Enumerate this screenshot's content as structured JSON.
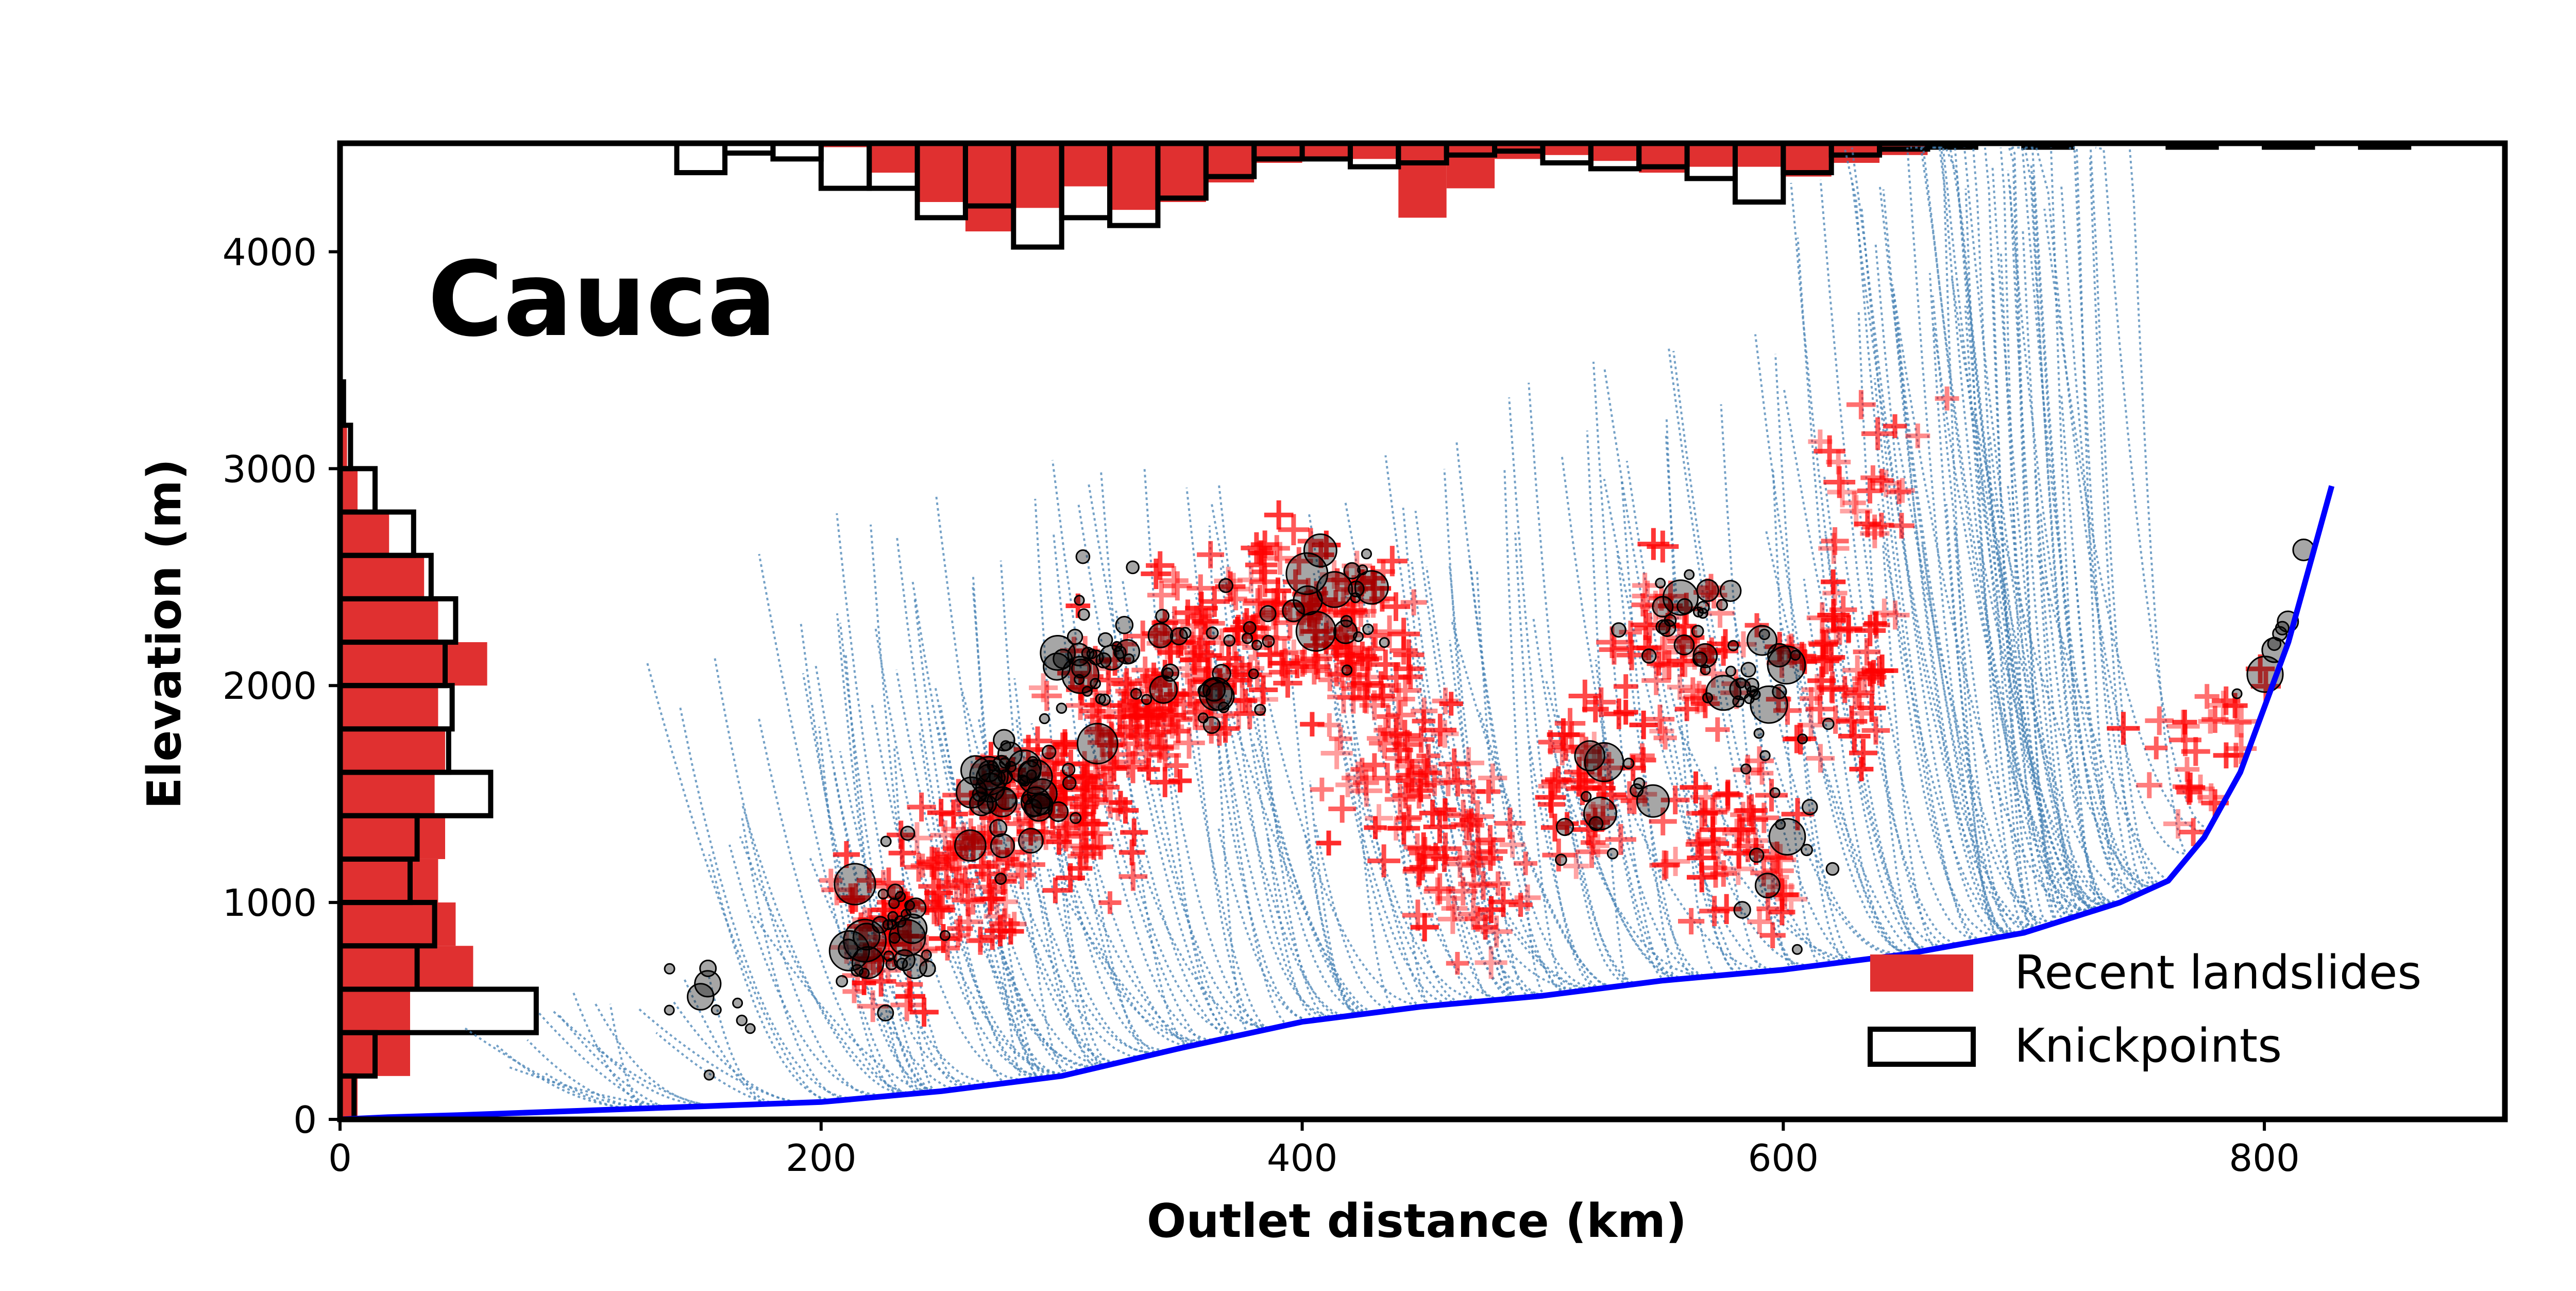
{
  "chart_data": {
    "type": "scatter",
    "title": "Cauca",
    "xlabel": "Outlet distance (km)",
    "ylabel": "Elevation (m)",
    "xlim": [
      0,
      900
    ],
    "ylim": [
      0,
      4500
    ],
    "x_ticks": [
      0,
      200,
      400,
      600,
      800
    ],
    "y_ticks": [
      0,
      1000,
      2000,
      3000,
      4000
    ],
    "grid": false,
    "legend": {
      "placement": "bottom-right",
      "entries": [
        {
          "label": "Recent landslides",
          "style": "filled",
          "color": "#e03030"
        },
        {
          "label": "Knickpoints",
          "style": "outline",
          "color": "#000000"
        }
      ]
    },
    "colors": {
      "tributaries": "#4682b4",
      "main_stem": "#0000ff",
      "landslides": "#ff0000",
      "knickpoints": "#000000",
      "hist_fill": "#e03030"
    },
    "series": [
      {
        "kind": "main_stem_profile",
        "x": [
          0,
          20,
          50,
          100,
          150,
          200,
          250,
          300,
          350,
          400,
          450,
          500,
          550,
          600,
          650,
          700,
          740,
          760,
          775,
          790,
          800,
          810,
          820,
          828
        ],
        "y": [
          0,
          10,
          20,
          40,
          60,
          80,
          130,
          200,
          330,
          450,
          520,
          570,
          640,
          690,
          760,
          860,
          1000,
          1100,
          1300,
          1600,
          1900,
          2200,
          2600,
          2920
        ]
      },
      {
        "kind": "landslide_clusters",
        "clusters": [
          {
            "x": 230,
            "y": 900,
            "count": 60
          },
          {
            "x": 265,
            "y": 1200,
            "count": 80
          },
          {
            "x": 300,
            "y": 1500,
            "count": 90
          },
          {
            "x": 330,
            "y": 1900,
            "count": 90
          },
          {
            "x": 360,
            "y": 2100,
            "count": 70
          },
          {
            "x": 390,
            "y": 2350,
            "count": 60
          },
          {
            "x": 425,
            "y": 2200,
            "count": 80
          },
          {
            "x": 440,
            "y": 1600,
            "count": 60
          },
          {
            "x": 470,
            "y": 1200,
            "count": 50
          },
          {
            "x": 520,
            "y": 1600,
            "count": 50
          },
          {
            "x": 560,
            "y": 2200,
            "count": 60
          },
          {
            "x": 580,
            "y": 1300,
            "count": 60
          },
          {
            "x": 620,
            "y": 2100,
            "count": 60
          },
          {
            "x": 635,
            "y": 2900,
            "count": 25
          },
          {
            "x": 770,
            "y": 1600,
            "count": 30
          }
        ]
      },
      {
        "kind": "knickpoint_clusters",
        "clusters": [
          {
            "x": 155,
            "y": 500,
            "count": 10
          },
          {
            "x": 230,
            "y": 900,
            "count": 35
          },
          {
            "x": 280,
            "y": 1500,
            "count": 45
          },
          {
            "x": 320,
            "y": 2200,
            "count": 35
          },
          {
            "x": 370,
            "y": 2100,
            "count": 20
          },
          {
            "x": 410,
            "y": 2350,
            "count": 18
          },
          {
            "x": 560,
            "y": 2350,
            "count": 20
          },
          {
            "x": 590,
            "y": 2000,
            "count": 25
          },
          {
            "x": 520,
            "y": 1500,
            "count": 12
          },
          {
            "x": 600,
            "y": 1200,
            "count": 10
          },
          {
            "x": 800,
            "y": 1900,
            "count": 8
          }
        ]
      }
    ],
    "hist_top": {
      "bin_width": 20,
      "landslides": [
        {
          "x": 200,
          "rel": 0.02
        },
        {
          "x": 220,
          "rel": 0.15
        },
        {
          "x": 240,
          "rel": 0.3
        },
        {
          "x": 260,
          "rel": 0.45
        },
        {
          "x": 280,
          "rel": 0.33
        },
        {
          "x": 300,
          "rel": 0.22
        },
        {
          "x": 320,
          "rel": 0.34
        },
        {
          "x": 340,
          "rel": 0.3
        },
        {
          "x": 360,
          "rel": 0.2
        },
        {
          "x": 380,
          "rel": 0.1
        },
        {
          "x": 400,
          "rel": 0.07
        },
        {
          "x": 420,
          "rel": 0.08
        },
        {
          "x": 440,
          "rel": 0.38
        },
        {
          "x": 460,
          "rel": 0.23
        },
        {
          "x": 480,
          "rel": 0.08
        },
        {
          "x": 500,
          "rel": 0.06
        },
        {
          "x": 520,
          "rel": 0.09
        },
        {
          "x": 540,
          "rel": 0.15
        },
        {
          "x": 560,
          "rel": 0.12
        },
        {
          "x": 580,
          "rel": 0.12
        },
        {
          "x": 600,
          "rel": 0.17
        },
        {
          "x": 620,
          "rel": 0.1
        },
        {
          "x": 640,
          "rel": 0.06
        }
      ],
      "knickpoints": [
        {
          "x": 140,
          "rel": 0.15
        },
        {
          "x": 160,
          "rel": 0.05
        },
        {
          "x": 180,
          "rel": 0.08
        },
        {
          "x": 200,
          "rel": 0.23
        },
        {
          "x": 220,
          "rel": 0.23
        },
        {
          "x": 240,
          "rel": 0.38
        },
        {
          "x": 260,
          "rel": 0.32
        },
        {
          "x": 280,
          "rel": 0.53
        },
        {
          "x": 300,
          "rel": 0.38
        },
        {
          "x": 320,
          "rel": 0.42
        },
        {
          "x": 340,
          "rel": 0.28
        },
        {
          "x": 360,
          "rel": 0.17
        },
        {
          "x": 380,
          "rel": 0.08
        },
        {
          "x": 400,
          "rel": 0.08
        },
        {
          "x": 420,
          "rel": 0.12
        },
        {
          "x": 440,
          "rel": 0.1
        },
        {
          "x": 460,
          "rel": 0.06
        },
        {
          "x": 480,
          "rel": 0.04
        },
        {
          "x": 500,
          "rel": 0.1
        },
        {
          "x": 520,
          "rel": 0.13
        },
        {
          "x": 540,
          "rel": 0.12
        },
        {
          "x": 560,
          "rel": 0.18
        },
        {
          "x": 580,
          "rel": 0.3
        },
        {
          "x": 600,
          "rel": 0.15
        },
        {
          "x": 620,
          "rel": 0.06
        },
        {
          "x": 640,
          "rel": 0.03
        },
        {
          "x": 660,
          "rel": 0.02
        },
        {
          "x": 700,
          "rel": 0.02
        },
        {
          "x": 760,
          "rel": 0.02
        },
        {
          "x": 800,
          "rel": 0.02
        },
        {
          "x": 840,
          "rel": 0.02
        }
      ]
    },
    "hist_left": {
      "bin_width": 200,
      "landslides": [
        {
          "y": 0,
          "rel": 0.05
        },
        {
          "y": 200,
          "rel": 0.2
        },
        {
          "y": 400,
          "rel": 0.2
        },
        {
          "y": 600,
          "rel": 0.38
        },
        {
          "y": 800,
          "rel": 0.33
        },
        {
          "y": 1000,
          "rel": 0.28
        },
        {
          "y": 1200,
          "rel": 0.3
        },
        {
          "y": 1400,
          "rel": 0.27
        },
        {
          "y": 1600,
          "rel": 0.3
        },
        {
          "y": 1800,
          "rel": 0.28
        },
        {
          "y": 2000,
          "rel": 0.42
        },
        {
          "y": 2200,
          "rel": 0.28
        },
        {
          "y": 2400,
          "rel": 0.24
        },
        {
          "y": 2600,
          "rel": 0.14
        },
        {
          "y": 2800,
          "rel": 0.05
        },
        {
          "y": 3000,
          "rel": 0.02
        }
      ],
      "knickpoints": [
        {
          "y": 0,
          "rel": 0.04
        },
        {
          "y": 200,
          "rel": 0.1
        },
        {
          "y": 400,
          "rel": 0.56
        },
        {
          "y": 600,
          "rel": 0.22
        },
        {
          "y": 800,
          "rel": 0.27
        },
        {
          "y": 1000,
          "rel": 0.2
        },
        {
          "y": 1200,
          "rel": 0.22
        },
        {
          "y": 1400,
          "rel": 0.43
        },
        {
          "y": 1600,
          "rel": 0.31
        },
        {
          "y": 1800,
          "rel": 0.32
        },
        {
          "y": 2000,
          "rel": 0.3
        },
        {
          "y": 2200,
          "rel": 0.33
        },
        {
          "y": 2400,
          "rel": 0.26
        },
        {
          "y": 2600,
          "rel": 0.21
        },
        {
          "y": 2800,
          "rel": 0.1
        },
        {
          "y": 3000,
          "rel": 0.03
        },
        {
          "y": 3200,
          "rel": 0.01
        }
      ]
    }
  }
}
